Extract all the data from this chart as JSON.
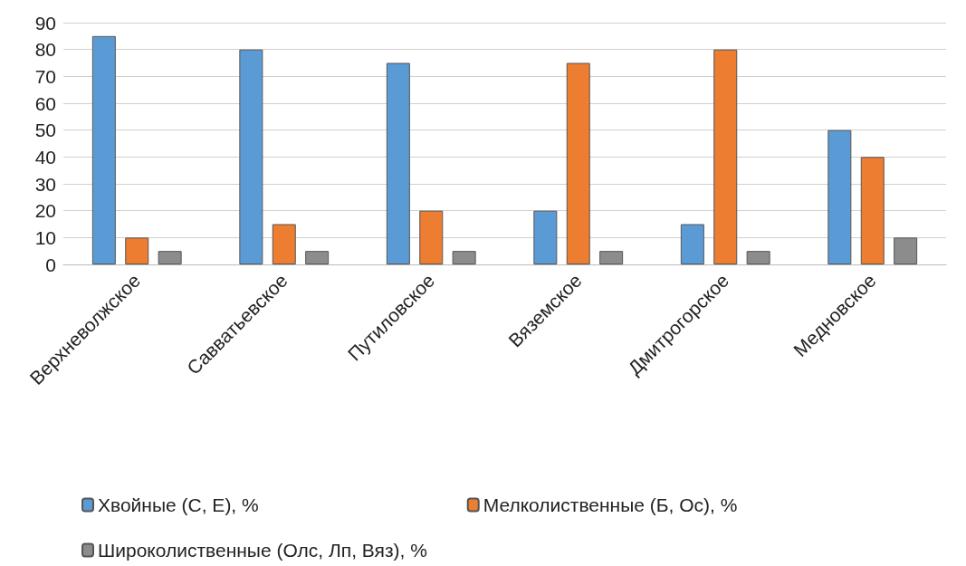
{
  "chart_data": {
    "type": "bar",
    "categories": [
      "Верхневолжское",
      "Савватьевское",
      "Путиловское",
      "Вяземское",
      "Дмитрогорское",
      "Медновское"
    ],
    "series": [
      {
        "name": "Хвойные (С, Е), %",
        "color": "#5b9bd5",
        "values": [
          85,
          80,
          75,
          20,
          15,
          50
        ]
      },
      {
        "name": "Мелколиственные (Б, Ос), %",
        "color": "#ed7d31",
        "values": [
          10,
          15,
          20,
          75,
          80,
          40
        ]
      },
      {
        "name": "Широколиственные (Олс, Лп, Вяз), %",
        "color": "#8c8c8c",
        "values": [
          5,
          5,
          5,
          5,
          5,
          10
        ]
      }
    ],
    "ylim": [
      0,
      90
    ],
    "yticks": [
      0,
      10,
      20,
      30,
      40,
      50,
      60,
      70,
      80,
      90
    ],
    "grid": "y",
    "legend": "bottom"
  }
}
